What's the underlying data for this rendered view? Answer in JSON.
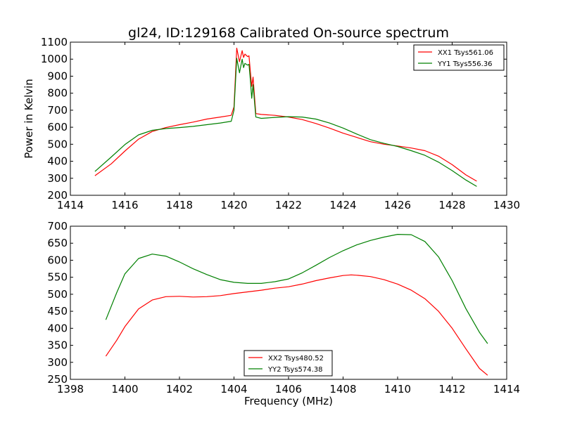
{
  "figure": {
    "title": "gl24, ID:129168 Calibrated On-source spectrum",
    "ylabel": "Power in Kelvin",
    "xlabel": "Frequency (MHz)"
  },
  "chart_data": [
    {
      "type": "line",
      "title": "gl24, ID:129168 Calibrated On-source spectrum",
      "xlabel": "",
      "ylabel": "Power in Kelvin",
      "xlim": [
        1414,
        1430
      ],
      "ylim": [
        200,
        1100
      ],
      "xticks": [
        1414,
        1416,
        1418,
        1420,
        1422,
        1424,
        1426,
        1428,
        1430
      ],
      "yticks": [
        200,
        300,
        400,
        500,
        600,
        700,
        800,
        900,
        1000,
        1100
      ],
      "legend_position": "top-right",
      "series": [
        {
          "name": "XX1 Tsys561.06",
          "color": "#ff0000",
          "x": [
            1414.9,
            1415.5,
            1416.0,
            1416.5,
            1417.0,
            1417.5,
            1418.0,
            1418.5,
            1419.0,
            1419.5,
            1419.9,
            1420.0,
            1420.1,
            1420.2,
            1420.3,
            1420.35,
            1420.4,
            1420.5,
            1420.55,
            1420.6,
            1420.65,
            1420.7,
            1420.8,
            1421.0,
            1421.5,
            1422.0,
            1422.5,
            1423.0,
            1423.5,
            1424.0,
            1424.5,
            1425.0,
            1425.5,
            1426.0,
            1426.5,
            1427.0,
            1427.5,
            1428.0,
            1428.5,
            1428.9
          ],
          "y": [
            315,
            385,
            460,
            530,
            575,
            598,
            615,
            630,
            648,
            660,
            670,
            720,
            1065,
            985,
            1050,
            1010,
            1030,
            1015,
            1020,
            930,
            840,
            895,
            680,
            675,
            670,
            660,
            645,
            622,
            595,
            565,
            540,
            515,
            500,
            490,
            478,
            462,
            430,
            380,
            320,
            283
          ]
        },
        {
          "name": "YY1 Tsys556.36",
          "color": "#008000",
          "x": [
            1414.9,
            1415.5,
            1416.0,
            1416.5,
            1417.0,
            1417.5,
            1418.0,
            1418.5,
            1419.0,
            1419.5,
            1419.9,
            1420.0,
            1420.1,
            1420.2,
            1420.3,
            1420.35,
            1420.4,
            1420.5,
            1420.55,
            1420.6,
            1420.65,
            1420.7,
            1420.8,
            1421.0,
            1421.5,
            1422.0,
            1422.5,
            1423.0,
            1423.5,
            1424.0,
            1424.5,
            1425.0,
            1425.5,
            1426.0,
            1426.5,
            1427.0,
            1427.5,
            1428.0,
            1428.5,
            1428.9
          ],
          "y": [
            340,
            425,
            498,
            555,
            582,
            592,
            598,
            605,
            615,
            625,
            635,
            700,
            1005,
            920,
            1000,
            950,
            975,
            965,
            970,
            880,
            770,
            850,
            660,
            652,
            658,
            662,
            660,
            648,
            625,
            595,
            560,
            527,
            505,
            487,
            462,
            435,
            395,
            345,
            290,
            252
          ]
        }
      ]
    },
    {
      "type": "line",
      "title": "",
      "xlabel": "Frequency (MHz)",
      "ylabel": "",
      "xlim": [
        1398,
        1414
      ],
      "ylim": [
        250,
        700
      ],
      "xticks": [
        1398,
        1400,
        1402,
        1404,
        1406,
        1408,
        1410,
        1412,
        1414
      ],
      "yticks": [
        250,
        300,
        350,
        400,
        450,
        500,
        550,
        600,
        650,
        700
      ],
      "legend_position": "bottom-center",
      "series": [
        {
          "name": "XX2 Tsys480.52",
          "color": "#ff0000",
          "x": [
            1399.3,
            1399.7,
            1400.0,
            1400.5,
            1401.0,
            1401.5,
            1402.0,
            1402.5,
            1403.0,
            1403.5,
            1404.0,
            1404.5,
            1405.0,
            1405.5,
            1406.0,
            1406.5,
            1407.0,
            1407.5,
            1408.0,
            1408.3,
            1408.5,
            1409.0,
            1409.5,
            1410.0,
            1410.5,
            1411.0,
            1411.5,
            1412.0,
            1412.5,
            1413.0,
            1413.3
          ],
          "y": [
            318,
            365,
            405,
            457,
            483,
            493,
            494,
            492,
            493,
            496,
            502,
            507,
            512,
            518,
            522,
            530,
            540,
            548,
            555,
            557,
            556,
            552,
            543,
            530,
            512,
            487,
            450,
            400,
            340,
            282,
            262
          ]
        },
        {
          "name": "YY2 Tsys574.38",
          "color": "#008000",
          "x": [
            1399.3,
            1399.7,
            1400.0,
            1400.5,
            1401.0,
            1401.5,
            1402.0,
            1402.5,
            1403.0,
            1403.5,
            1404.0,
            1404.5,
            1405.0,
            1405.5,
            1406.0,
            1406.5,
            1407.0,
            1407.5,
            1408.0,
            1408.5,
            1409.0,
            1409.5,
            1410.0,
            1410.5,
            1411.0,
            1411.5,
            1412.0,
            1412.5,
            1413.0,
            1413.3
          ],
          "y": [
            425,
            505,
            560,
            605,
            618,
            612,
            595,
            575,
            558,
            543,
            535,
            532,
            532,
            537,
            545,
            563,
            585,
            608,
            628,
            645,
            658,
            668,
            676,
            675,
            655,
            610,
            540,
            458,
            388,
            355
          ]
        }
      ]
    }
  ]
}
